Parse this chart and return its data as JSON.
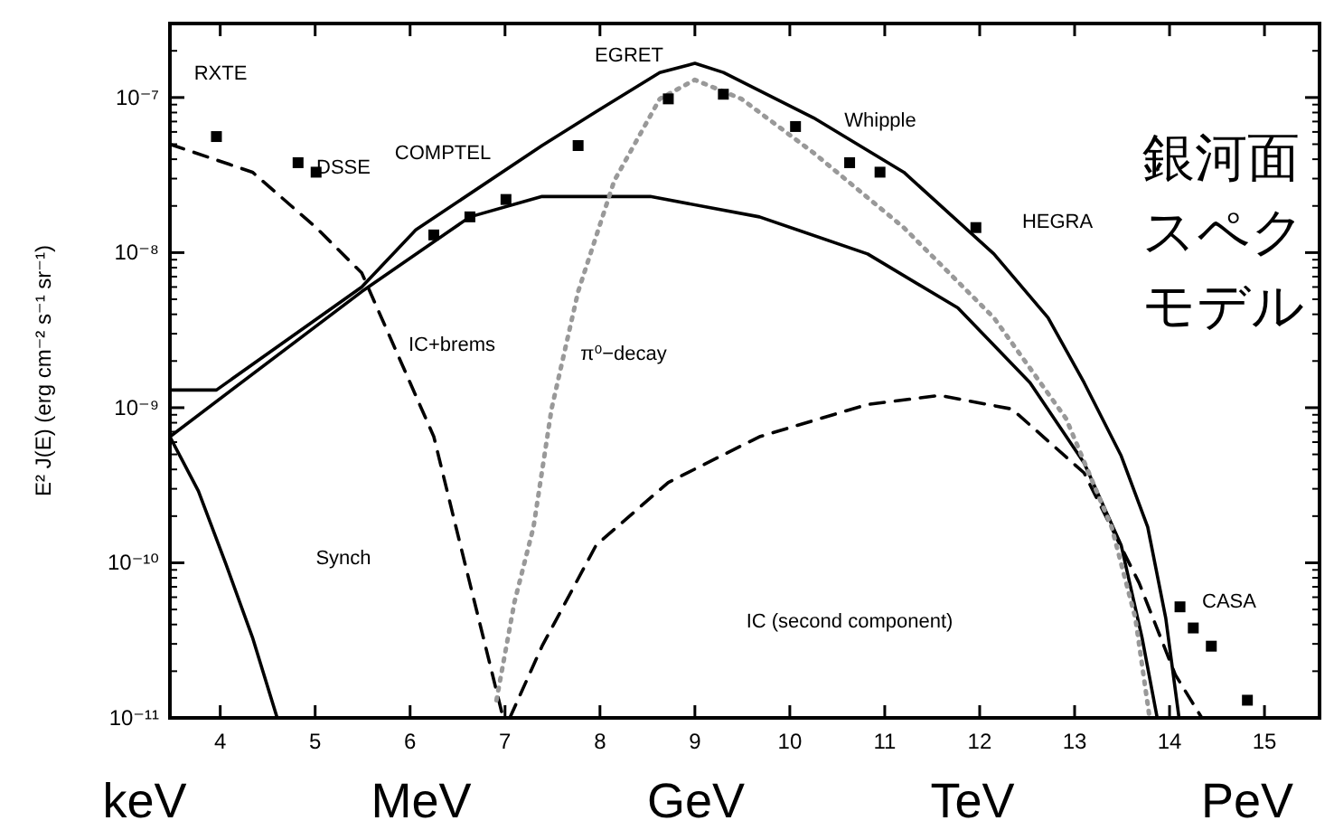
{
  "chart_data": {
    "type": "line",
    "title": "銀河面スペクモデル",
    "ylabel": "E² J(E) (erg cm⁻² s⁻¹ sr⁻¹)",
    "log": "y",
    "grid": false,
    "xlim": [
      3.47,
      15.58
    ],
    "ylim": [
      1e-11,
      3e-07
    ],
    "xticks": [
      4,
      5,
      6,
      7,
      8,
      9,
      10,
      11,
      12,
      13,
      14,
      15
    ],
    "yticks": [
      {
        "value": 1e-11,
        "label": "10⁻¹¹"
      },
      {
        "value": 1e-10,
        "label": "10⁻¹⁰"
      },
      {
        "value": 1e-09,
        "label": "10⁻⁹"
      },
      {
        "value": 1e-08,
        "label": "10⁻⁸"
      },
      {
        "value": 1e-07,
        "label": "10⁻⁷"
      }
    ],
    "series": [
      {
        "color": "#000000",
        "line_style": "solid",
        "x": [
          3.47,
          3.96,
          5.49,
          6.06,
          7.39,
          7.96,
          8.63,
          9.0,
          9.3,
          10.25,
          11.2,
          12.15,
          12.72,
          13.1,
          13.49,
          13.77,
          13.96,
          14.1
        ],
        "values": [
          1.3e-09,
          1.3e-09,
          6e-09,
          1.4e-08,
          4.9e-08,
          8.1e-08,
          1.45e-07,
          1.66e-07,
          1.45e-07,
          7.4e-08,
          3.3e-08,
          9.8e-09,
          3.8e-09,
          1.45e-09,
          4.9e-10,
          1.7e-10,
          4.4e-11,
          1e-11
        ]
      },
      {
        "color": "#000000",
        "line_style": "solid",
        "x": [
          3.47,
          5.49,
          6.63,
          7.39,
          8.53,
          9.68,
          10.82,
          11.77,
          12.53,
          13.1,
          13.49,
          13.71,
          13.87
        ],
        "values": [
          6.5e-10,
          5.6e-09,
          1.7e-08,
          2.3e-08,
          2.3e-08,
          1.7e-08,
          9.8e-09,
          4.4e-09,
          1.45e-09,
          4.4e-10,
          1.3e-10,
          3.3e-11,
          1e-11
        ]
      },
      {
        "color": "#000000",
        "line_style": "solid",
        "x": [
          3.47,
          3.77,
          4.06,
          4.34,
          4.6
        ],
        "values": [
          6.5e-10,
          2.9e-10,
          9.8e-11,
          3.3e-11,
          1e-11
        ]
      },
      {
        "color": "#000000",
        "line_style": "dashed",
        "x": [
          3.47,
          4.34,
          5.01,
          5.49,
          5.87,
          6.25,
          6.53,
          6.82,
          6.98
        ],
        "values": [
          5e-08,
          3.3e-08,
          1.45e-08,
          7.4e-09,
          2.2e-09,
          6.5e-10,
          1.3e-10,
          2.5e-11,
          1e-11
        ]
      },
      {
        "color": "#000000",
        "line_style": "dashed",
        "x": [
          7.05,
          7.39,
          7.96,
          8.72,
          9.68,
          10.82,
          11.58,
          12.34,
          13.1,
          13.68,
          14.06,
          14.34
        ],
        "values": [
          1e-11,
          2.9e-11,
          1.3e-10,
          3.3e-10,
          6.5e-10,
          1.05e-09,
          1.2e-09,
          9.8e-10,
          3.8e-10,
          7.4e-11,
          1.9e-11,
          1e-11
        ]
      },
      {
        "color": "#999999",
        "line_style": "dotted",
        "x": [
          6.91,
          7.1,
          7.3,
          7.49,
          7.77,
          8.15,
          8.63,
          9.0,
          9.49,
          10.25,
          11.2,
          12.15,
          12.91,
          13.39,
          13.64,
          13.79
        ],
        "values": [
          1.3e-11,
          5.6e-11,
          1.7e-10,
          9.8e-10,
          5.6e-09,
          2.9e-08,
          9.8e-08,
          1.3e-07,
          9.8e-08,
          4.4e-08,
          1.45e-08,
          3.8e-09,
          8.5e-10,
          1.7e-10,
          4.4e-11,
          1e-11
        ]
      },
      {
        "type": "scatter",
        "marker": "square",
        "color": "#000000",
        "x": [
          3.96,
          4.82,
          5.01,
          6.25,
          6.63,
          7.01,
          7.77,
          8.72,
          9.3,
          10.06,
          10.63,
          10.95,
          11.96,
          14.11,
          14.25,
          14.44,
          14.82
        ],
        "values": [
          5.6e-08,
          3.8e-08,
          3.3e-08,
          1.3e-08,
          1.7e-08,
          2.2e-08,
          4.9e-08,
          9.8e-08,
          1.05e-07,
          6.5e-08,
          3.8e-08,
          3.3e-08,
          1.45e-08,
          5.2e-11,
          3.8e-11,
          2.9e-11,
          1.3e-11
        ]
      }
    ],
    "annotations": [
      "RXTE",
      "DSSE",
      "COMPTEL",
      "EGRET",
      "Whipple",
      "HEGRA",
      "CASA",
      "Synch",
      "IC+brems",
      "π⁰−decay",
      "IC (second component)",
      "keV",
      "MeV",
      "GeV",
      "TeV",
      "PeV"
    ]
  }
}
